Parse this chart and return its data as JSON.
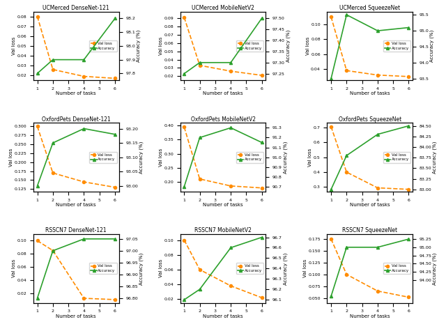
{
  "subplots": [
    {
      "title": "UCMerced DenseNet-121",
      "x": [
        1,
        2,
        4,
        6
      ],
      "val_loss": [
        0.08,
        0.026,
        0.019,
        0.017
      ],
      "accuracy": [
        97.8,
        97.9,
        97.9,
        98.2
      ],
      "ylim_loss": [
        0.015,
        0.085
      ],
      "ylim_acc": [
        97.75,
        98.25
      ],
      "yticks_loss": [
        0.02,
        0.03,
        0.04,
        0.05,
        0.06,
        0.07,
        0.08
      ],
      "yticks_acc": [
        97.8,
        97.9,
        98.0,
        98.1,
        98.2
      ]
    },
    {
      "title": "UCMerced MobileNetV2",
      "x": [
        1,
        2,
        4,
        6
      ],
      "val_loss": [
        0.091,
        0.033,
        0.026,
        0.021
      ],
      "accuracy": [
        97.25,
        97.3,
        97.3,
        97.5
      ],
      "ylim_loss": [
        0.015,
        0.098
      ],
      "ylim_acc": [
        97.22,
        97.53
      ],
      "yticks_loss": [
        0.02,
        0.03,
        0.04,
        0.05,
        0.06,
        0.07,
        0.08,
        0.09
      ],
      "yticks_acc": [
        97.25,
        97.3,
        97.35,
        97.4,
        97.45,
        97.5
      ]
    },
    {
      "title": "UCMerced SqueezeNet",
      "x": [
        1,
        2,
        4,
        6
      ],
      "val_loss": [
        0.11,
        0.038,
        0.032,
        0.03
      ],
      "accuracy": [
        93.5,
        95.5,
        95.0,
        95.1
      ],
      "ylim_loss": [
        0.025,
        0.117
      ],
      "ylim_acc": [
        93.45,
        95.6
      ],
      "yticks_loss": [
        0.04,
        0.06,
        0.08,
        0.1
      ],
      "yticks_acc": [
        93.5,
        94.0,
        94.5,
        95.0,
        95.5
      ]
    },
    {
      "title": "OxfordPets DenseNet-121",
      "x": [
        1,
        2,
        4,
        6
      ],
      "val_loss": [
        0.3,
        0.17,
        0.145,
        0.13
      ],
      "accuracy": [
        93.0,
        93.15,
        93.2,
        93.18
      ],
      "ylim_loss": [
        0.118,
        0.31
      ],
      "ylim_acc": [
        92.98,
        93.22
      ],
      "yticks_loss": [
        0.125,
        0.15,
        0.175,
        0.2,
        0.225,
        0.25,
        0.275,
        0.3
      ],
      "yticks_acc": [
        93.0,
        93.05,
        93.1,
        93.15,
        93.2
      ]
    },
    {
      "title": "OxfordPets MobileNetV2",
      "x": [
        1,
        2,
        4,
        6
      ],
      "val_loss": [
        0.395,
        0.21,
        0.185,
        0.178
      ],
      "accuracy": [
        90.7,
        91.2,
        91.3,
        91.15
      ],
      "ylim_loss": [
        0.165,
        0.41
      ],
      "ylim_acc": [
        90.65,
        91.35
      ],
      "yticks_loss": [
        0.2,
        0.25,
        0.3,
        0.35,
        0.4
      ],
      "yticks_acc": [
        90.7,
        90.8,
        90.9,
        91.0,
        91.1,
        91.2,
        91.3
      ]
    },
    {
      "title": "OxfordPets SqueezeNet",
      "x": [
        1,
        2,
        4,
        6
      ],
      "val_loss": [
        0.705,
        0.4,
        0.295,
        0.285
      ],
      "accuracy": [
        83.0,
        83.8,
        84.3,
        84.5
      ],
      "ylim_loss": [
        0.27,
        0.73
      ],
      "ylim_acc": [
        82.95,
        84.57
      ],
      "yticks_loss": [
        0.3,
        0.4,
        0.5,
        0.6,
        0.7
      ],
      "yticks_acc": [
        83.0,
        83.25,
        83.5,
        83.75,
        84.0,
        84.25,
        84.5
      ]
    },
    {
      "title": "RSSCN7 DenseNet-121",
      "x": [
        1,
        2,
        4,
        6
      ],
      "val_loss": [
        0.1,
        0.085,
        0.012,
        0.01
      ],
      "accuracy": [
        96.8,
        97.0,
        97.05,
        97.05
      ],
      "ylim_loss": [
        0.005,
        0.11
      ],
      "ylim_acc": [
        96.78,
        97.07
      ],
      "yticks_loss": [
        0.02,
        0.04,
        0.06,
        0.08,
        0.1
      ],
      "yticks_acc": [
        96.8,
        96.85,
        96.9,
        96.95,
        97.0,
        97.05
      ]
    },
    {
      "title": "RSSCN7 MobileNetV2",
      "x": [
        1,
        2,
        4,
        6
      ],
      "val_loss": [
        0.1,
        0.06,
        0.038,
        0.022
      ],
      "accuracy": [
        96.1,
        96.2,
        96.6,
        96.7
      ],
      "ylim_loss": [
        0.015,
        0.108
      ],
      "ylim_acc": [
        96.07,
        96.73
      ],
      "yticks_loss": [
        0.02,
        0.04,
        0.06,
        0.08,
        0.1
      ],
      "yticks_acc": [
        96.1,
        96.2,
        96.3,
        96.4,
        96.5,
        96.6,
        96.7
      ]
    },
    {
      "title": "RSSCN7 SqueezeNet",
      "x": [
        1,
        2,
        4,
        6
      ],
      "val_loss": [
        0.175,
        0.1,
        0.065,
        0.052
      ],
      "accuracy": [
        93.5,
        95.0,
        95.0,
        95.25
      ],
      "ylim_loss": [
        0.04,
        0.185
      ],
      "ylim_acc": [
        93.3,
        95.4
      ],
      "yticks_loss": [
        0.05,
        0.075,
        0.1,
        0.125,
        0.15,
        0.175
      ],
      "yticks_acc": [
        94.0,
        94.25,
        94.5,
        94.75,
        95.0,
        95.25
      ]
    }
  ],
  "orange_color": "#FF8C00",
  "green_color": "#2CA02C",
  "xlabel": "Number of tasks",
  "ylabel_left": "Val loss",
  "ylabel_right": "Accuracy (%)"
}
